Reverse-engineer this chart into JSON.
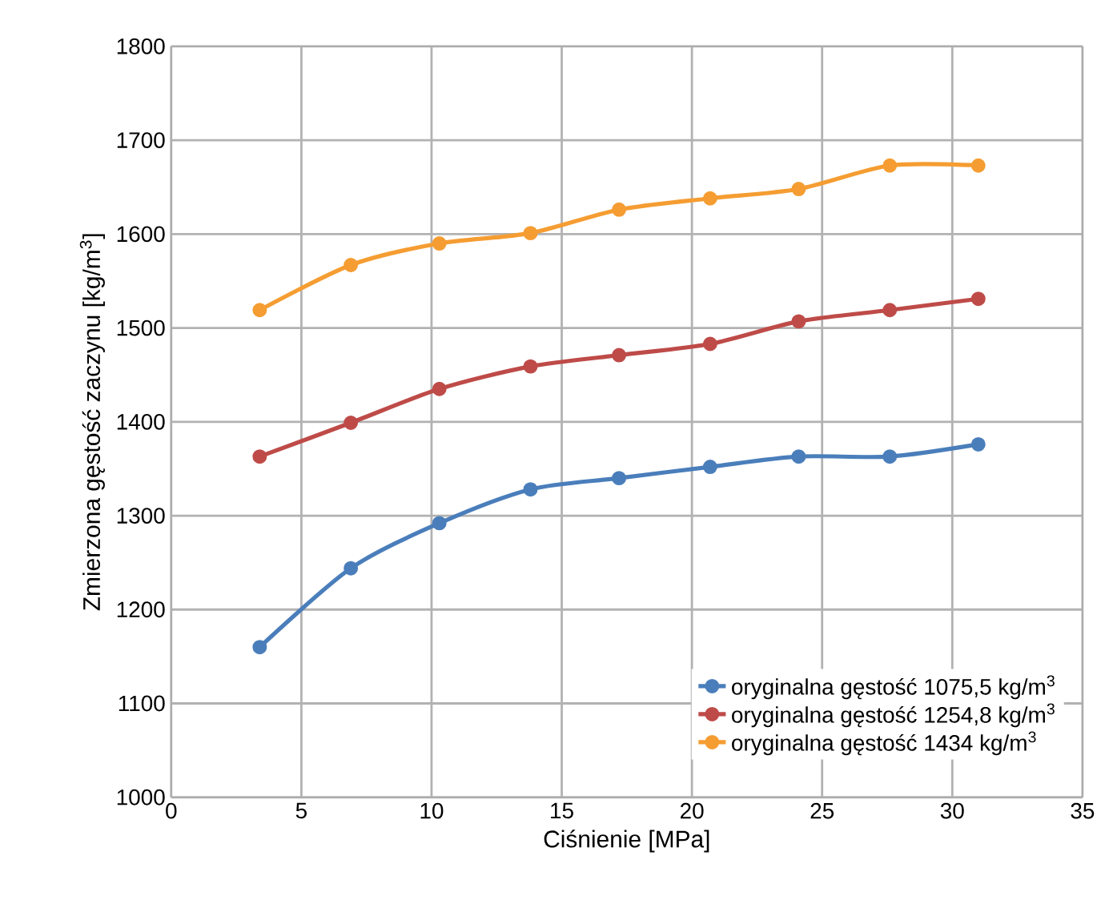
{
  "chart_data": {
    "type": "line",
    "xlabel": "Ciśnienie [MPa]",
    "ylabel": "Zmierzona gęstość zaczynu [kg/m$^{3}$]",
    "x": [
      3.4,
      6.9,
      10.3,
      13.8,
      17.2,
      20.7,
      24.1,
      27.6,
      31.0
    ],
    "series": [
      {
        "name": "oryginalna gęstość 1075,5 kg/m$^{3}$",
        "color": "#4a7ebb",
        "values": [
          1160,
          1244,
          1292,
          1328,
          1340,
          1352,
          1363,
          1363,
          1376
        ]
      },
      {
        "name": "oryginalna gęstość 1254,8 kg/m$^{3}$",
        "color": "#be4b48",
        "values": [
          1363,
          1399,
          1435,
          1459,
          1471,
          1483,
          1507,
          1519,
          1531
        ]
      },
      {
        "name": "oryginalna gęstość 1434 kg/m$^{3}$",
        "color": "#f59d32",
        "values": [
          1519,
          1567,
          1590,
          1601,
          1626,
          1638,
          1648,
          1673,
          1673
        ]
      }
    ],
    "xlim": [
      0,
      35
    ],
    "xticks": [
      0,
      5,
      10,
      15,
      20,
      25,
      30,
      35
    ],
    "ylim": [
      1000,
      1800
    ],
    "yticks": [
      1000,
      1100,
      1200,
      1300,
      1400,
      1500,
      1600,
      1700,
      1800
    ],
    "grid": true,
    "legend": "bottom right",
    "marker": "circle",
    "line_style": "solid"
  }
}
